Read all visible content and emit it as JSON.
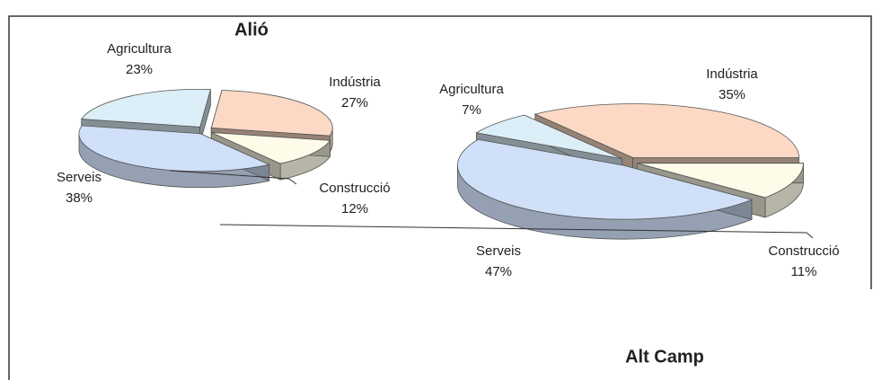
{
  "chart_data": [
    {
      "type": "pie",
      "title": "Alió",
      "categories": [
        "Indústria",
        "Construcció",
        "Serveis",
        "Agricultura"
      ],
      "values": [
        27,
        12,
        38,
        23
      ],
      "value_labels": [
        "27%",
        "12%",
        "38%",
        "23%"
      ],
      "colors": [
        "#fbd9c4",
        "#fefbe8",
        "#cfe0f8",
        "#dceef8"
      ]
    },
    {
      "type": "pie",
      "title": "Alt Camp",
      "categories": [
        "Indústria",
        "Construcció",
        "Serveis",
        "Agricultura"
      ],
      "values": [
        35,
        11,
        47,
        7
      ],
      "value_labels": [
        "35%",
        "11%",
        "47%",
        "7%"
      ],
      "colors": [
        "#fbd9c4",
        "#fefbe8",
        "#cfe0f8",
        "#dceef8"
      ]
    }
  ]
}
